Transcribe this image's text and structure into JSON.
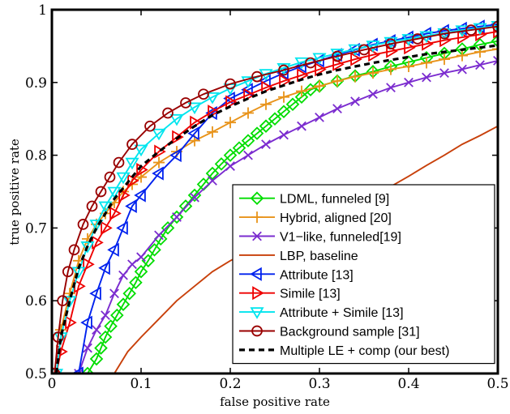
{
  "chart_data": {
    "type": "line",
    "title": "",
    "xlabel": "false positive rate",
    "ylabel": "true positive rate",
    "xlim": [
      0,
      0.5
    ],
    "ylim": [
      0.5,
      1
    ],
    "xticks": [
      0,
      0.1,
      0.2,
      0.3,
      0.4,
      0.5
    ],
    "xtick_labels": [
      "0",
      "0.1",
      "0.2",
      "0.3",
      "0.4",
      "0.5"
    ],
    "yticks": [
      0.5,
      0.6,
      0.7,
      0.8,
      0.9,
      1.0
    ],
    "ytick_labels": [
      "0.5",
      "0.6",
      "0.7",
      "0.8",
      "0.9",
      "1"
    ],
    "grid": false,
    "legend_position": "bottom-right",
    "series": [
      {
        "name": "LDML, funneled [9]",
        "color": "#00dd00",
        "marker": "diamond",
        "line_style": "solid",
        "x": [
          0.04,
          0.05,
          0.055,
          0.06,
          0.066,
          0.073,
          0.08,
          0.087,
          0.094,
          0.1,
          0.108,
          0.115,
          0.122,
          0.13,
          0.14,
          0.15,
          0.16,
          0.17,
          0.18,
          0.19,
          0.2,
          0.21,
          0.22,
          0.23,
          0.24,
          0.25,
          0.26,
          0.27,
          0.28,
          0.29,
          0.3,
          0.32,
          0.34,
          0.36,
          0.38,
          0.4,
          0.42,
          0.44,
          0.46,
          0.48,
          0.5
        ],
        "y": [
          0.5,
          0.52,
          0.535,
          0.55,
          0.565,
          0.58,
          0.595,
          0.61,
          0.625,
          0.64,
          0.655,
          0.67,
          0.685,
          0.7,
          0.715,
          0.73,
          0.745,
          0.76,
          0.775,
          0.788,
          0.8,
          0.81,
          0.82,
          0.83,
          0.84,
          0.85,
          0.86,
          0.87,
          0.88,
          0.89,
          0.895,
          0.902,
          0.909,
          0.915,
          0.922,
          0.928,
          0.934,
          0.94,
          0.946,
          0.952,
          0.957
        ]
      },
      {
        "name": "Hybrid, aligned [20]",
        "color": "#e8931a",
        "marker": "plus",
        "line_style": "solid",
        "x": [
          0.01,
          0.02,
          0.03,
          0.04,
          0.05,
          0.06,
          0.07,
          0.08,
          0.09,
          0.1,
          0.12,
          0.14,
          0.16,
          0.18,
          0.2,
          0.22,
          0.24,
          0.26,
          0.28,
          0.3,
          0.32,
          0.34,
          0.36,
          0.38,
          0.4,
          0.42,
          0.44,
          0.46,
          0.48,
          0.5
        ],
        "y": [
          0.56,
          0.61,
          0.655,
          0.685,
          0.705,
          0.72,
          0.735,
          0.75,
          0.76,
          0.77,
          0.79,
          0.805,
          0.82,
          0.832,
          0.845,
          0.858,
          0.87,
          0.88,
          0.888,
          0.895,
          0.902,
          0.908,
          0.913,
          0.918,
          0.922,
          0.927,
          0.932,
          0.937,
          0.942,
          0.946
        ]
      },
      {
        "name": "V1−like, funneled[19]",
        "color": "#7b2ccf",
        "marker": "x",
        "line_style": "solid",
        "x": [
          0.03,
          0.04,
          0.05,
          0.06,
          0.07,
          0.08,
          0.09,
          0.1,
          0.12,
          0.14,
          0.16,
          0.18,
          0.2,
          0.22,
          0.24,
          0.26,
          0.28,
          0.3,
          0.32,
          0.34,
          0.36,
          0.38,
          0.4,
          0.42,
          0.44,
          0.46,
          0.48,
          0.5
        ],
        "y": [
          0.5,
          0.535,
          0.56,
          0.58,
          0.61,
          0.635,
          0.65,
          0.66,
          0.69,
          0.715,
          0.742,
          0.765,
          0.785,
          0.8,
          0.815,
          0.828,
          0.84,
          0.852,
          0.864,
          0.874,
          0.884,
          0.893,
          0.9,
          0.907,
          0.913,
          0.918,
          0.924,
          0.93
        ]
      },
      {
        "name": "LBP, baseline",
        "color": "#c8400a",
        "marker": "none",
        "line_style": "solid",
        "x": [
          0.07,
          0.085,
          0.1,
          0.12,
          0.14,
          0.16,
          0.18,
          0.2,
          0.22,
          0.24,
          0.26,
          0.28,
          0.3,
          0.32,
          0.34,
          0.36,
          0.38,
          0.4,
          0.42,
          0.44,
          0.46,
          0.48,
          0.5
        ],
        "y": [
          0.5,
          0.53,
          0.55,
          0.575,
          0.6,
          0.62,
          0.64,
          0.655,
          0.667,
          0.677,
          0.687,
          0.698,
          0.709,
          0.72,
          0.732,
          0.745,
          0.757,
          0.771,
          0.786,
          0.8,
          0.815,
          0.827,
          0.84
        ]
      },
      {
        "name": "Attribute [13]",
        "color": "#0022ee",
        "marker": "triangle-left",
        "line_style": "solid",
        "x": [
          0.03,
          0.04,
          0.05,
          0.06,
          0.07,
          0.08,
          0.09,
          0.1,
          0.12,
          0.14,
          0.16,
          0.18,
          0.2,
          0.22,
          0.24,
          0.26,
          0.28,
          0.3,
          0.32,
          0.34,
          0.36,
          0.38,
          0.4,
          0.42,
          0.44,
          0.46,
          0.48,
          0.5
        ],
        "y": [
          0.5,
          0.57,
          0.61,
          0.645,
          0.67,
          0.7,
          0.73,
          0.745,
          0.775,
          0.8,
          0.83,
          0.858,
          0.878,
          0.89,
          0.902,
          0.913,
          0.922,
          0.93,
          0.938,
          0.945,
          0.952,
          0.957,
          0.962,
          0.967,
          0.971,
          0.974,
          0.977,
          0.98
        ]
      },
      {
        "name": "Simile [13]",
        "color": "#ee0000",
        "marker": "triangle-right",
        "line_style": "solid",
        "x": [
          0.005,
          0.01,
          0.02,
          0.03,
          0.04,
          0.05,
          0.06,
          0.07,
          0.08,
          0.09,
          0.1,
          0.12,
          0.14,
          0.16,
          0.18,
          0.2,
          0.22,
          0.24,
          0.26,
          0.28,
          0.3,
          0.32,
          0.34,
          0.36,
          0.38,
          0.4,
          0.42,
          0.44,
          0.46,
          0.48,
          0.5
        ],
        "y": [
          0.5,
          0.53,
          0.57,
          0.62,
          0.65,
          0.68,
          0.7,
          0.72,
          0.745,
          0.765,
          0.78,
          0.805,
          0.825,
          0.845,
          0.86,
          0.873,
          0.883,
          0.893,
          0.902,
          0.91,
          0.918,
          0.925,
          0.932,
          0.938,
          0.943,
          0.948,
          0.953,
          0.958,
          0.962,
          0.966,
          0.97
        ]
      },
      {
        "name": "Attribute + Simile [13]",
        "color": "#00e5ee",
        "marker": "triangle-down",
        "line_style": "solid",
        "x": [
          0.005,
          0.01,
          0.02,
          0.03,
          0.04,
          0.05,
          0.06,
          0.07,
          0.08,
          0.09,
          0.1,
          0.12,
          0.14,
          0.16,
          0.18,
          0.2,
          0.22,
          0.24,
          0.26,
          0.28,
          0.3,
          0.32,
          0.34,
          0.36,
          0.38,
          0.4,
          0.42,
          0.44,
          0.46,
          0.48,
          0.5
        ],
        "y": [
          0.5,
          0.55,
          0.6,
          0.64,
          0.675,
          0.705,
          0.73,
          0.75,
          0.77,
          0.79,
          0.808,
          0.83,
          0.85,
          0.866,
          0.88,
          0.892,
          0.902,
          0.912,
          0.92,
          0.928,
          0.934,
          0.94,
          0.946,
          0.951,
          0.956,
          0.96,
          0.964,
          0.968,
          0.972,
          0.975,
          0.978
        ]
      },
      {
        "name": "Background sample [31]",
        "color": "#990000",
        "marker": "circle",
        "line_style": "solid",
        "x": [
          0.003,
          0.007,
          0.012,
          0.018,
          0.025,
          0.035,
          0.045,
          0.055,
          0.065,
          0.075,
          0.09,
          0.11,
          0.13,
          0.15,
          0.17,
          0.2,
          0.23,
          0.26,
          0.29,
          0.32,
          0.35,
          0.38,
          0.41,
          0.44,
          0.47,
          0.5
        ],
        "y": [
          0.5,
          0.55,
          0.6,
          0.64,
          0.67,
          0.705,
          0.73,
          0.75,
          0.77,
          0.79,
          0.815,
          0.84,
          0.858,
          0.872,
          0.884,
          0.898,
          0.908,
          0.917,
          0.927,
          0.936,
          0.945,
          0.953,
          0.96,
          0.967,
          0.972,
          0.977
        ]
      },
      {
        "name": "Multiple LE + comp (our best)",
        "color": "#000000",
        "marker": "none",
        "line_style": "dashed",
        "x": [
          0.005,
          0.01,
          0.02,
          0.03,
          0.04,
          0.05,
          0.06,
          0.07,
          0.08,
          0.09,
          0.1,
          0.12,
          0.14,
          0.16,
          0.18,
          0.2,
          0.22,
          0.24,
          0.26,
          0.28,
          0.3,
          0.32,
          0.34,
          0.36,
          0.38,
          0.4,
          0.42,
          0.44,
          0.46,
          0.48,
          0.5
        ],
        "y": [
          0.5,
          0.55,
          0.6,
          0.645,
          0.675,
          0.7,
          0.72,
          0.74,
          0.755,
          0.77,
          0.785,
          0.805,
          0.823,
          0.84,
          0.855,
          0.867,
          0.878,
          0.888,
          0.896,
          0.904,
          0.911,
          0.917,
          0.922,
          0.927,
          0.931,
          0.935,
          0.939,
          0.942,
          0.945,
          0.948,
          0.951
        ]
      }
    ]
  }
}
